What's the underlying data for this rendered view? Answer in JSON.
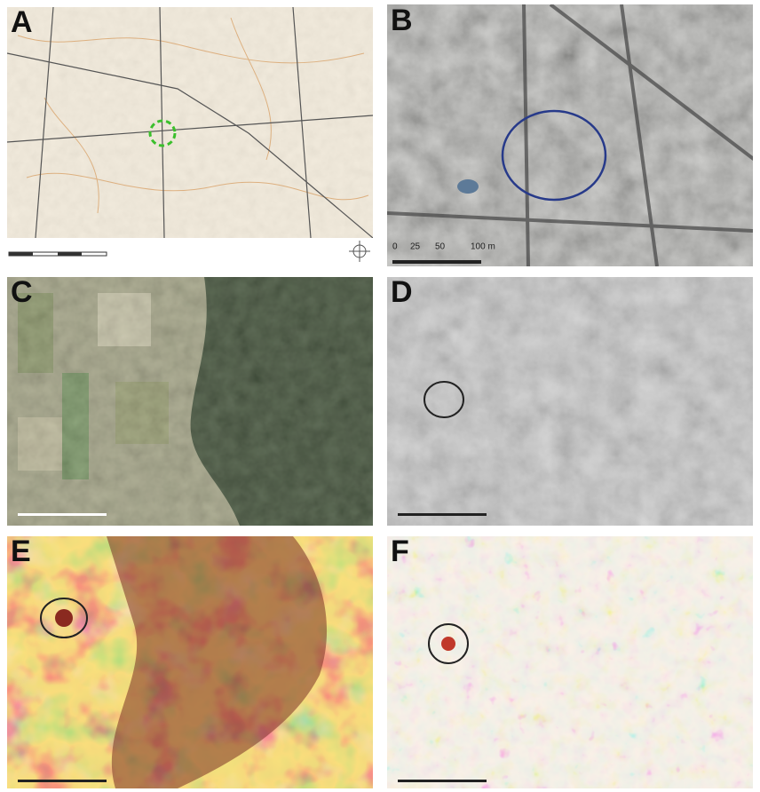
{
  "panels": [
    {
      "label": "A"
    },
    {
      "label": "B"
    },
    {
      "label": "C"
    },
    {
      "label": "D"
    },
    {
      "label": "E"
    },
    {
      "label": "F"
    }
  ],
  "scale_bar_b": {
    "labels": [
      "0",
      "25",
      "50",
      "100 m"
    ]
  }
}
